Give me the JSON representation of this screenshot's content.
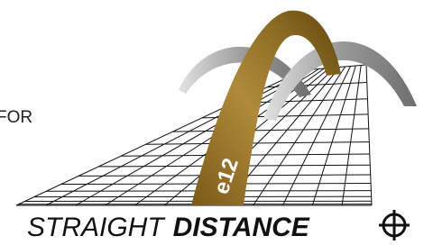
{
  "logo": {
    "side_text": "FOR",
    "brand": "e12",
    "tagline_light": "STRAIGHT",
    "tagline_bold": "DISTANCE"
  }
}
